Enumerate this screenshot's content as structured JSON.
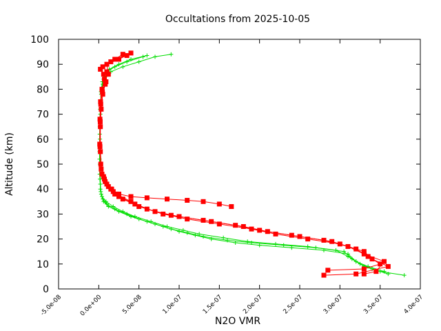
{
  "chart_data": {
    "type": "line",
    "title": "Occultations from 2025-10-05",
    "xlabel": "N2O VMR",
    "ylabel": "Altitude (km)",
    "xlim": [
      -5e-08,
      4e-07
    ],
    "ylim": [
      0,
      100
    ],
    "x_ticks": [
      "-5.0e-08",
      "0.0e+00",
      "5.0e-08",
      "1.0e-07",
      "1.5e-07",
      "2.0e-07",
      "2.5e-07",
      "3.0e-07",
      "3.5e-07",
      "4.0e-07"
    ],
    "x_tick_values": [
      -5e-08,
      0,
      5e-08,
      1e-07,
      1.5e-07,
      2e-07,
      2.5e-07,
      3e-07,
      3.5e-07,
      4e-07
    ],
    "y_ticks": [
      "0",
      "10",
      "20",
      "30",
      "40",
      "50",
      "60",
      "70",
      "80",
      "90",
      "100"
    ],
    "y_tick_values": [
      0,
      10,
      20,
      30,
      40,
      50,
      60,
      70,
      80,
      90,
      100
    ],
    "grid": false,
    "legend": "none",
    "series": [
      {
        "color": "#00dd00",
        "marker": "plus",
        "profiles": [
          {
            "x": [
              3.8e-07,
              3.5e-07,
              3.3e-07,
              3.2e-07,
              3.1e-07,
              2.8e-07,
              2.4e-07,
              2e-07,
              1.7e-07,
              1.4e-07,
              1.2e-07,
              1e-07,
              8e-08,
              6e-08,
              4e-08,
              2.5e-08,
              1.2e-08,
              6e-09,
              3e-09,
              2e-09,
              1.5e-09,
              1.5e-09,
              2e-09,
              3e-09,
              5e-09,
              8e-09,
              1.5e-08,
              3e-08,
              5e-08,
              7e-08,
              9e-08
            ],
            "y": [
              5.5,
              7,
              9,
              11,
              14,
              15.5,
              16.5,
              17.5,
              18.5,
              20,
              21.5,
              23,
              25,
              27,
              29,
              31,
              33,
              35,
              38,
              42,
              50,
              60,
              70,
              78,
              82,
              85,
              87,
              89,
              91,
              93,
              94
            ]
          },
          {
            "x": [
              3.6e-07,
              3.4e-07,
              3.25e-07,
              3.15e-07,
              3.05e-07,
              2.7e-07,
              2.3e-07,
              1.9e-07,
              1.6e-07,
              1.3e-07,
              1.1e-07,
              9e-08,
              7e-08,
              5e-08,
              3.5e-08,
              2e-08,
              1e-08,
              5e-09,
              2.5e-09,
              1.5e-09,
              1e-09,
              1.2e-09,
              1.8e-09,
              2.8e-09,
              4.5e-09,
              7e-09,
              1.3e-08,
              2.5e-08,
              4e-08,
              6e-08
            ],
            "y": [
              6,
              8,
              10,
              12,
              15,
              16.5,
              17.5,
              18.5,
              19.5,
              21,
              22.5,
              24,
              26,
              28,
              30,
              32,
              34,
              36,
              39,
              44,
              52,
              62,
              72,
              79,
              83,
              86,
              88,
              90,
              92,
              93.5
            ]
          },
          {
            "x": [
              3.55e-07,
              3.35e-07,
              3.2e-07,
              3.1e-07,
              2.95e-07,
              2.6e-07,
              2.2e-07,
              1.85e-07,
              1.55e-07,
              1.25e-07,
              1.05e-07,
              8.5e-08,
              6.5e-08,
              4.5e-08,
              3e-08,
              1.8e-08,
              9e-09,
              4e-09,
              2e-09,
              1.2e-09,
              1e-09,
              1.3e-09,
              2e-09,
              3.5e-09,
              6e-09,
              1e-08,
              2e-08,
              3.5e-08,
              5.5e-08
            ],
            "y": [
              7,
              9,
              11,
              13,
              15.5,
              17,
              18,
              19,
              20.5,
              22,
              23.5,
              25,
              27,
              29,
              31,
              33,
              35,
              37,
              40,
              46,
              55,
              65,
              74,
              80,
              84,
              87,
              89,
              91,
              93
            ]
          }
        ]
      },
      {
        "color": "#ff0000",
        "marker": "square",
        "profiles": [
          {
            "x": [
              2.8e-07,
              3.2e-07,
              3.6e-07,
              3.4e-07,
              3.3e-07,
              3e-07,
              2.6e-07,
              2.2e-07,
              1.9e-07,
              1.5e-07,
              1.1e-07,
              8e-08,
              5e-08,
              3e-08,
              2e-08,
              1.5e-08,
              8e-09,
              4e-09,
              2e-09,
              2e-09,
              3e-09,
              5e-09,
              8e-09,
              6e-09,
              2e-09,
              1.5e-08,
              3e-08
            ],
            "y": [
              5.5,
              6,
              9,
              12,
              15,
              18,
              20,
              22,
              24,
              26,
              28,
              30,
              33,
              36,
              38,
              40,
              43,
              46,
              55,
              65,
              72,
              78,
              82,
              86,
              88,
              91,
              94
            ]
          },
          {
            "x": [
              2.85e-07,
              3.3e-07,
              3.5e-07,
              3.35e-07,
              3.2e-07,
              2.9e-07,
              2.5e-07,
              2.1e-07,
              1.8e-07,
              1.4e-07,
              1e-07,
              7e-08,
              4.5e-08,
              2.5e-08,
              1.8e-08,
              1.2e-08,
              7e-09,
              3e-09,
              1.5e-09,
              1.8e-09,
              2.5e-09,
              4.5e-09,
              9e-09,
              1e-08,
              5e-09,
              2e-08,
              3.5e-08
            ],
            "y": [
              7.5,
              8,
              10,
              13,
              16,
              19,
              21,
              23,
              25,
              27,
              29,
              31,
              34,
              37,
              39,
              41,
              44,
              48,
              57,
              67,
              74,
              79,
              83,
              87,
              89,
              92,
              93.5
            ]
          },
          {
            "x": [
              3.3e-07,
              3.45e-07,
              3.55e-07,
              3.3e-07,
              3.1e-07,
              2.8e-07,
              2.4e-07,
              2e-07,
              1.7e-07,
              1.3e-07,
              9e-08,
              6e-08,
              4e-08,
              2.2e-08,
              1.6e-08,
              1e-08,
              6e-09,
              2.5e-09,
              1.2e-09,
              1.5e-09,
              2.2e-09,
              4e-09,
              7e-09,
              1.2e-08,
              1e-08,
              2.5e-08,
              4e-08
            ],
            "y": [
              6,
              7,
              11,
              14,
              17,
              19.5,
              21.5,
              23.5,
              25.5,
              27.5,
              29.5,
              32,
              35,
              38,
              40,
              42,
              45,
              50,
              58,
              68,
              75,
              80,
              84,
              86,
              90,
              92,
              94.5
            ]
          },
          {
            "x": [
              1.65e-07,
              1.5e-07,
              1.3e-07,
              1.1e-07,
              8.5e-08,
              6e-08,
              4e-08,
              2.5e-08
            ],
            "y": [
              33,
              34,
              35,
              35.5,
              36,
              36.5,
              37,
              38
            ]
          }
        ]
      }
    ]
  }
}
